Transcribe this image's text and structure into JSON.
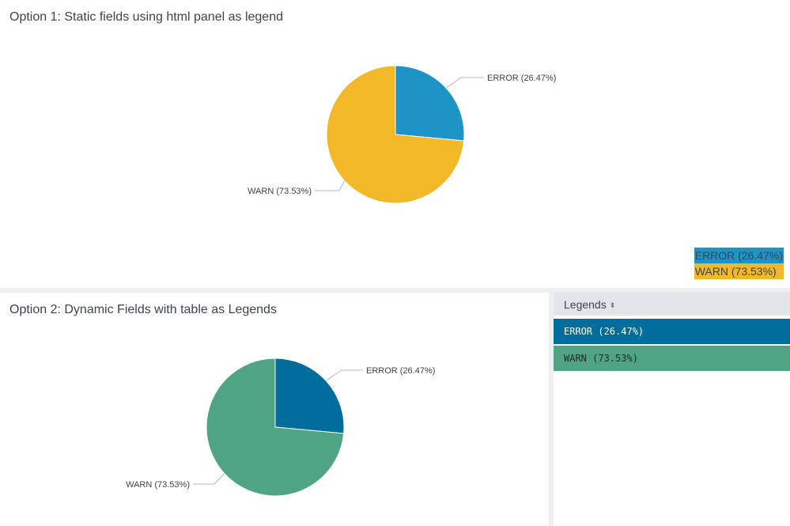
{
  "panel1": {
    "title": "Option 1: Static fields using html panel as legend",
    "legend": [
      {
        "label": "ERROR (26.47%)",
        "color": "#1e93c6"
      },
      {
        "label": "WARN (73.53%)",
        "color": "#f2b827"
      }
    ]
  },
  "panel2": {
    "title": "Option 2: Dynamic Fields with table as Legends"
  },
  "legends_table": {
    "header": "Legends",
    "sort_icon": "sort-icon",
    "rows": [
      {
        "label": "ERROR (26.47%)",
        "color": "#006d9c"
      },
      {
        "label": "WARN (73.53%)",
        "color": "#4fa484"
      }
    ]
  },
  "chart_data": [
    {
      "type": "pie",
      "labels": [
        "ERROR (26.47%)",
        "WARN (73.53%)"
      ],
      "values": [
        26.47,
        73.53
      ],
      "colors": [
        "#1e93c6",
        "#f2b827"
      ]
    },
    {
      "type": "pie",
      "labels": [
        "ERROR (26.47%)",
        "WARN (73.53%)"
      ],
      "values": [
        26.47,
        73.53
      ],
      "colors": [
        "#006d9c",
        "#4fa484"
      ]
    }
  ]
}
